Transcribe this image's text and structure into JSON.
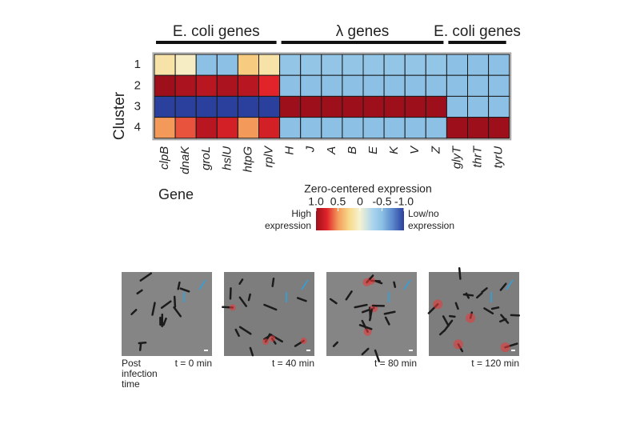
{
  "chart_data": {
    "type": "heatmap",
    "groups": [
      "E. coli genes",
      "λ genes",
      "E. coli genes"
    ],
    "categories": [
      "clpB",
      "dnaK",
      "groL",
      "hslU",
      "htpG",
      "rplV",
      "H",
      "J",
      "A",
      "B",
      "E",
      "K",
      "V",
      "Z",
      "glyT",
      "thrT",
      "tyrU"
    ],
    "rows": [
      "1",
      "2",
      "3",
      "4"
    ],
    "y_label": "Cluster",
    "x_label": "Gene",
    "values": [
      [
        0.15,
        0.05,
        -0.5,
        -0.5,
        0.3,
        0.15,
        -0.45,
        -0.45,
        -0.45,
        -0.45,
        -0.45,
        -0.45,
        -0.45,
        -0.45,
        -0.5,
        -0.5,
        -0.5
      ],
      [
        1.0,
        0.95,
        0.9,
        0.95,
        0.9,
        0.75,
        -0.5,
        -0.5,
        -0.5,
        -0.5,
        -0.5,
        -0.5,
        -0.5,
        -0.5,
        -0.5,
        -0.5,
        -0.5
      ],
      [
        -1.0,
        -1.0,
        -1.0,
        -1.0,
        -1.0,
        -1.0,
        1.0,
        1.0,
        1.0,
        1.0,
        1.0,
        1.0,
        1.0,
        1.0,
        -0.5,
        -0.5,
        -0.5
      ],
      [
        0.5,
        0.65,
        0.9,
        0.8,
        0.5,
        0.8,
        -0.5,
        -0.5,
        -0.5,
        -0.5,
        -0.5,
        -0.5,
        -0.5,
        -0.5,
        1.0,
        1.0,
        1.0
      ]
    ],
    "colorbar_title": "Zero-centered expression",
    "clim": [
      1,
      -1
    ],
    "cticks": [
      {
        "value": 1,
        "label": "1.0"
      },
      0.5,
      0,
      -0.5,
      {
        "value": -1,
        "label": "-1.0"
      }
    ],
    "colorscale": [
      [
        1,
        "#9e0f1c"
      ],
      [
        0.75,
        "#e0242a"
      ],
      [
        0.5,
        "#f39a5a"
      ],
      [
        0.25,
        "#f8d98a"
      ],
      [
        0,
        "#f5f2d2"
      ],
      [
        -0.3,
        "#a9d3ee"
      ],
      [
        -0.5,
        "#8cc0e4"
      ],
      [
        -0.75,
        "#5a86cc"
      ],
      [
        -1,
        "#2b3f9c"
      ]
    ],
    "high_label": [
      "High",
      "expression"
    ],
    "low_label": [
      "Low/no",
      "expression"
    ]
  },
  "panels": {
    "caption": [
      "Post",
      "infection",
      "time"
    ],
    "labels": [
      "t = 0 min",
      "t = 40 min",
      "t = 80 min",
      "t = 120 min"
    ]
  }
}
